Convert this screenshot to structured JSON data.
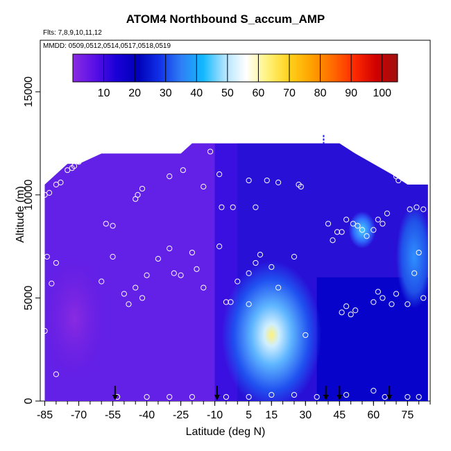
{
  "title": "ATOM4 Northbound S_accum_AMP",
  "subtitle_flights": "Flts: 7,8,9,10,11,12",
  "subtitle_dates": "MMDD: 0509,0512,0514,0517,0518,0519",
  "chart_data": {
    "type": "heatmap",
    "title": "ATOM4 Northbound S_accum_AMP",
    "xlabel": "Latitude (deg N)",
    "ylabel": "Altitude (m)",
    "xlim": [
      -87,
      85
    ],
    "ylim": [
      0,
      17500
    ],
    "x_ticks": [
      -85,
      -70,
      -55,
      -40,
      -25,
      -10,
      5,
      15,
      30,
      45,
      60,
      75
    ],
    "y_ticks": [
      0,
      5000,
      10000,
      15000
    ],
    "colorbar": {
      "range": [
        0,
        105
      ],
      "ticks": [
        10,
        20,
        30,
        40,
        50,
        60,
        70,
        80,
        90,
        100
      ],
      "colors": [
        "#8a2be2",
        "#5a10e6",
        "#1a00d8",
        "#0000b8",
        "#1030e8",
        "#2f7ef5",
        "#10b8ff",
        "#aee3ff",
        "#ffffff",
        "#fff27a",
        "#ffd21a",
        "#ffa200",
        "#ff6a00",
        "#ff2a00",
        "#d00000",
        "#a01010"
      ]
    },
    "coverage_top_altitude": [
      [
        -85,
        10500
      ],
      [
        -80,
        11000
      ],
      [
        -75,
        11500
      ],
      [
        -70,
        11500
      ],
      [
        -60,
        12000
      ],
      [
        -50,
        12000
      ],
      [
        -35,
        12000
      ],
      [
        -25,
        12000
      ],
      [
        -20,
        12500
      ],
      [
        -10,
        12500
      ],
      [
        0,
        12500
      ],
      [
        15,
        12500
      ],
      [
        30,
        12500
      ],
      [
        45,
        12500
      ],
      [
        52,
        12000
      ],
      [
        60,
        11500
      ],
      [
        68,
        11000
      ],
      [
        75,
        10500
      ],
      [
        80,
        10500
      ],
      [
        84,
        10500
      ]
    ],
    "observation_points": [
      [
        -85,
        10000
      ],
      [
        -83,
        10100
      ],
      [
        -80,
        10500
      ],
      [
        -78,
        10600
      ],
      [
        -75,
        11200
      ],
      [
        -73,
        11300
      ],
      [
        -72,
        11400
      ],
      [
        -70,
        11600
      ],
      [
        -58,
        8600
      ],
      [
        -55,
        8500
      ],
      [
        -45,
        9800
      ],
      [
        -44,
        10000
      ],
      [
        -42,
        10300
      ],
      [
        -30,
        10900
      ],
      [
        -24,
        11200
      ],
      [
        -12,
        12100
      ],
      [
        -15,
        10400
      ],
      [
        -8,
        11000
      ],
      [
        -7,
        9400
      ],
      [
        5,
        10700
      ],
      [
        13,
        10700
      ],
      [
        18,
        10600
      ],
      [
        27,
        10500
      ],
      [
        28,
        10400
      ],
      [
        -2,
        9400
      ],
      [
        8,
        9400
      ],
      [
        40,
        8600
      ],
      [
        42,
        7800
      ],
      [
        44,
        8200
      ],
      [
        46,
        8200
      ],
      [
        48,
        8800
      ],
      [
        51,
        8600
      ],
      [
        53,
        8500
      ],
      [
        55,
        8300
      ],
      [
        57,
        8000
      ],
      [
        60,
        8300
      ],
      [
        62,
        8800
      ],
      [
        64,
        8600
      ],
      [
        66,
        9100
      ],
      [
        70,
        10900
      ],
      [
        71,
        10700
      ],
      [
        73,
        10800
      ],
      [
        74,
        11100
      ],
      [
        76,
        9300
      ],
      [
        79,
        9400
      ],
      [
        82,
        9300
      ],
      [
        -84,
        7000
      ],
      [
        -82,
        5700
      ],
      [
        -80,
        6700
      ],
      [
        -60,
        5800
      ],
      [
        -55,
        7000
      ],
      [
        -50,
        5200
      ],
      [
        -48,
        4700
      ],
      [
        -45,
        5500
      ],
      [
        -42,
        5000
      ],
      [
        -40,
        6100
      ],
      [
        -35,
        6900
      ],
      [
        -30,
        7400
      ],
      [
        -28,
        6200
      ],
      [
        -25,
        6100
      ],
      [
        -20,
        7200
      ],
      [
        -18,
        6400
      ],
      [
        -15,
        5500
      ],
      [
        -8,
        7500
      ],
      [
        -5,
        4800
      ],
      [
        -3,
        4800
      ],
      [
        0,
        5800
      ],
      [
        5,
        6200
      ],
      [
        8,
        6700
      ],
      [
        10,
        7100
      ],
      [
        15,
        6500
      ],
      [
        18,
        5500
      ],
      [
        25,
        7000
      ],
      [
        30,
        3200
      ],
      [
        46,
        4300
      ],
      [
        48,
        4600
      ],
      [
        50,
        4200
      ],
      [
        52,
        4400
      ],
      [
        60,
        4800
      ],
      [
        62,
        5300
      ],
      [
        64,
        5000
      ],
      [
        68,
        4700
      ],
      [
        70,
        5200
      ],
      [
        75,
        4700
      ],
      [
        78,
        6200
      ],
      [
        80,
        7200
      ],
      [
        82,
        5000
      ],
      [
        5,
        4700
      ],
      [
        -85,
        3400
      ],
      [
        -80,
        1300
      ],
      [
        -53,
        200
      ],
      [
        -40,
        200
      ],
      [
        -30,
        200
      ],
      [
        -20,
        200
      ],
      [
        -5,
        200
      ],
      [
        5,
        200
      ],
      [
        15,
        300
      ],
      [
        25,
        300
      ],
      [
        35,
        200
      ],
      [
        48,
        300
      ],
      [
        60,
        500
      ],
      [
        65,
        200
      ],
      [
        75,
        200
      ],
      [
        80,
        200
      ]
    ],
    "arrow_markers_latitude": [
      -54,
      -9,
      39,
      45,
      67
    ],
    "dashed_marker": [
      38,
      12700
    ]
  }
}
